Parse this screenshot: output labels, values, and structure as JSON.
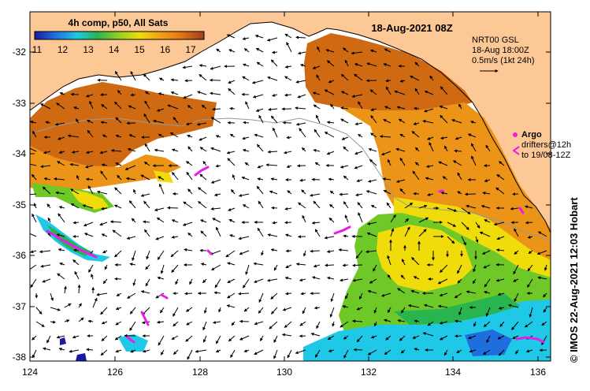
{
  "title": "18-Aug-2021 08Z",
  "composite_label": "4h comp, p50, All Sats",
  "colorbar": {
    "ticks": [
      "11",
      "12",
      "13",
      "14",
      "15",
      "16",
      "17"
    ],
    "colors": [
      "#1a1aa0",
      "#1e6ee0",
      "#1ec8e6",
      "#28b44e",
      "#96d21e",
      "#f0dc0a",
      "#f5a014",
      "#e67814",
      "#c85014",
      "#a03c1e"
    ]
  },
  "current_info": {
    "model": "NRT00 GSL",
    "time": "18-Aug 18:00Z",
    "scale": "0.5m/s (1kt 24h)"
  },
  "argo_legend": {
    "title": "Argo",
    "line1": "drifters@12h",
    "line2": "to 19/08-12Z"
  },
  "x_ticks": [
    "124",
    "126",
    "128",
    "130",
    "132",
    "134",
    "136"
  ],
  "y_ticks": [
    "-32",
    "-33",
    "-34",
    "-35",
    "-36",
    "-37",
    "-38"
  ],
  "side_credit": "© IMOS 22-Aug-2021 12:03 Hobart",
  "colors": {
    "land": "#fcc896",
    "ocean": "#ffffff",
    "sst_warm": "#d06a12",
    "sst_orange": "#ec9418",
    "sst_yellow": "#f0dc0a",
    "sst_green": "#6ec828",
    "sst_cyan": "#1ec8e6",
    "argo": "#e61ee6"
  }
}
